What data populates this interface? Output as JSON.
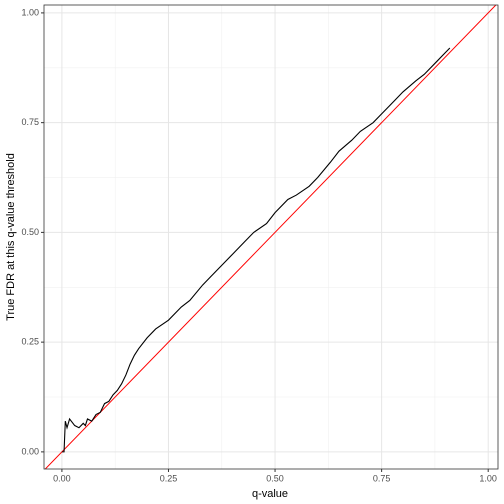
{
  "chart_data": {
    "type": "line",
    "x_label": "q-value",
    "y_label": "True FDR at this q-value threshold",
    "x": [
      0,
      0.005,
      0.008,
      0.012,
      0.018,
      0.03,
      0.04,
      0.05,
      0.055,
      0.06,
      0.07,
      0.08,
      0.09,
      0.1,
      0.11,
      0.12,
      0.13,
      0.14,
      0.15,
      0.16,
      0.17,
      0.18,
      0.2,
      0.22,
      0.25,
      0.28,
      0.3,
      0.33,
      0.35,
      0.38,
      0.4,
      0.43,
      0.45,
      0.48,
      0.5,
      0.53,
      0.55,
      0.58,
      0.6,
      0.63,
      0.65,
      0.68,
      0.7,
      0.73,
      0.75,
      0.78,
      0.8,
      0.83,
      0.85,
      0.88,
      0.9,
      0.91
    ],
    "series": [
      {
        "color": "#000000",
        "values": [
          0,
          0,
          0.07,
          0.055,
          0.075,
          0.06,
          0.055,
          0.065,
          0.06,
          0.075,
          0.07,
          0.085,
          0.09,
          0.11,
          0.115,
          0.13,
          0.14,
          0.155,
          0.175,
          0.2,
          0.22,
          0.235,
          0.26,
          0.28,
          0.3,
          0.33,
          0.345,
          0.38,
          0.4,
          0.43,
          0.45,
          0.48,
          0.5,
          0.52,
          0.545,
          0.575,
          0.585,
          0.605,
          0.625,
          0.66,
          0.685,
          0.71,
          0.73,
          0.75,
          0.77,
          0.8,
          0.82,
          0.845,
          0.86,
          0.89,
          0.91,
          0.92
        ]
      }
    ],
    "reference_line": {
      "slope": 1,
      "intercept": 0,
      "color": "#ff0000"
    },
    "xlim": [
      -0.042,
      1.023
    ],
    "ylim": [
      -0.039,
      1.018
    ],
    "xticks": [
      {
        "value": 0,
        "label": "0.00"
      },
      {
        "value": 0.25,
        "label": "0.25"
      },
      {
        "value": 0.5,
        "label": "0.50"
      },
      {
        "value": 0.75,
        "label": "0.75"
      },
      {
        "value": 1,
        "label": "1.00"
      }
    ],
    "yticks": [
      {
        "value": 0,
        "label": "0.00"
      },
      {
        "value": 0.25,
        "label": "0.25"
      },
      {
        "value": 0.5,
        "label": "0.50"
      },
      {
        "value": 0.75,
        "label": "0.75"
      },
      {
        "value": 1,
        "label": "1.00"
      }
    ],
    "grid": true
  }
}
